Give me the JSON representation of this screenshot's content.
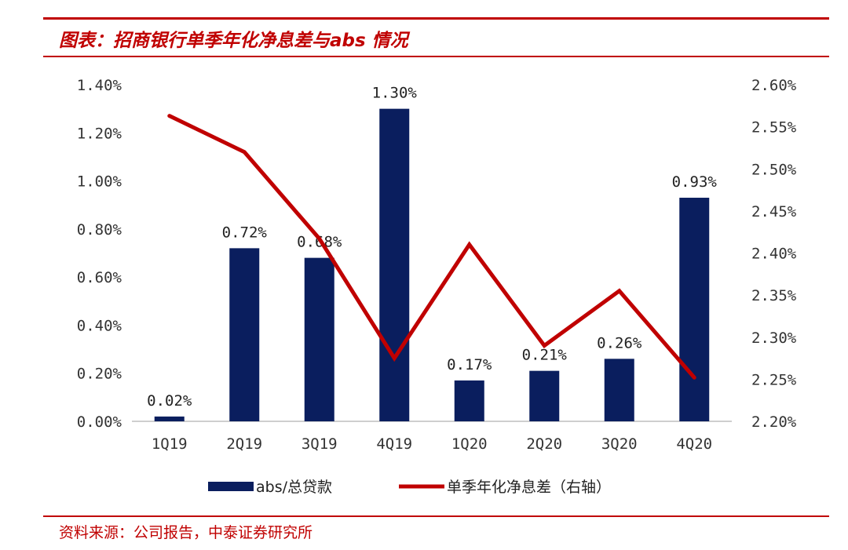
{
  "header": {
    "title": "图表：招商银行单季年化净息差与abs 情况"
  },
  "footer": {
    "source": "资料来源：公司报告，中泰证券研究所"
  },
  "colors": {
    "bar": "#0a1e5e",
    "line": "#c00000",
    "accent": "#c00000"
  },
  "chart_data": {
    "type": "bar",
    "title": "图表：招商银行单季年化净息差与abs 情况",
    "categories": [
      "1Q19",
      "2Q19",
      "3Q19",
      "4Q19",
      "1Q20",
      "2Q20",
      "3Q20",
      "4Q20"
    ],
    "series": [
      {
        "name": "abs/总贷款",
        "type": "bar",
        "axis": "left",
        "values": [
          0.02,
          0.72,
          0.68,
          1.3,
          0.17,
          0.21,
          0.26,
          0.93
        ],
        "labels": [
          "0.02%",
          "0.72%",
          "0.68%",
          "1.30%",
          "0.17%",
          "0.21%",
          "0.26%",
          "0.93%"
        ]
      },
      {
        "name": "单季年化净息差（右轴）",
        "type": "line",
        "axis": "right",
        "values": [
          2.563,
          2.52,
          2.417,
          2.275,
          2.41,
          2.29,
          2.355,
          2.252
        ]
      }
    ],
    "y_left": {
      "ylim": [
        0,
        1.4
      ],
      "ticks": [
        "0.00%",
        "0.20%",
        "0.40%",
        "0.60%",
        "0.80%",
        "1.00%",
        "1.20%",
        "1.40%"
      ]
    },
    "y_right": {
      "ylim": [
        2.2,
        2.6
      ],
      "ticks": [
        "2.20%",
        "2.25%",
        "2.30%",
        "2.35%",
        "2.40%",
        "2.45%",
        "2.50%",
        "2.55%",
        "2.60%"
      ]
    },
    "legend": {
      "placement": "bottom",
      "items": [
        "abs/总贷款",
        "单季年化净息差（右轴）"
      ]
    },
    "grid": false
  }
}
